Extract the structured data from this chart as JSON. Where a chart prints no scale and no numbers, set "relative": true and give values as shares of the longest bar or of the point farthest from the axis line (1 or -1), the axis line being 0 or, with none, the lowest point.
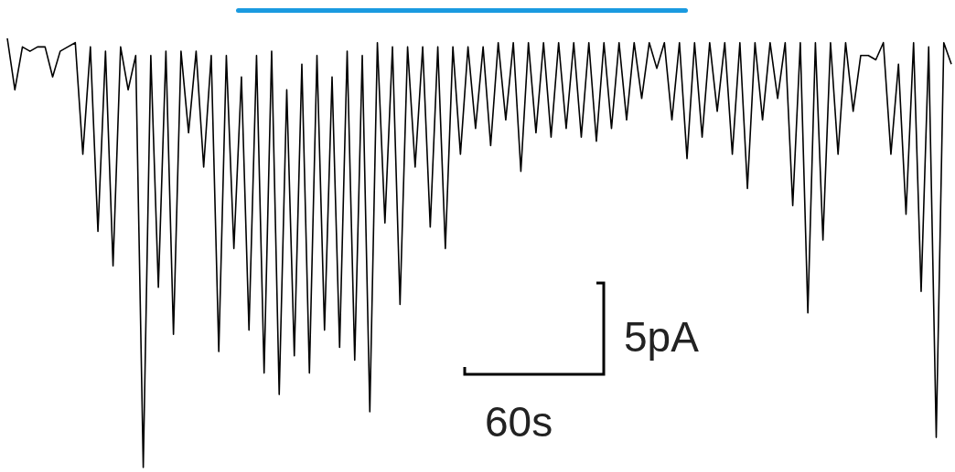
{
  "chart_data": {
    "type": "line",
    "relative": true,
    "line_style": "solid",
    "categories": [
      null,
      null,
      null,
      null,
      null,
      null,
      null,
      null,
      null,
      null,
      null,
      null,
      null,
      null,
      null,
      null,
      null,
      null,
      null,
      null,
      null,
      null,
      null,
      null,
      null,
      null,
      null,
      null,
      null,
      null,
      null,
      null,
      null,
      null,
      null,
      null,
      null,
      null,
      null,
      null,
      null,
      null,
      null,
      null,
      null,
      null,
      null,
      null,
      null,
      null,
      null,
      null,
      null,
      null,
      null,
      null,
      null,
      null,
      null,
      null,
      null,
      null,
      null,
      null,
      null,
      null,
      null,
      null,
      null,
      null,
      null,
      null,
      null,
      null,
      null,
      null,
      null,
      null,
      null,
      null,
      null,
      null,
      null,
      null,
      null,
      null,
      null,
      null,
      null,
      null,
      null,
      null,
      null,
      null,
      null,
      null,
      null,
      null,
      null,
      null,
      null,
      null,
      null,
      null,
      null,
      null,
      null,
      null,
      null,
      null,
      null,
      null,
      null,
      null,
      null,
      null,
      null,
      null,
      null,
      null,
      null,
      null,
      null,
      null,
      null,
      null
    ],
    "annotations": [
      "5pA",
      "60s"
    ],
    "series": [
      {
        "color": "#000000",
        "values": [
          1,
          0.88,
          0.98,
          0.97,
          0.98,
          0.98,
          0.91,
          0.97,
          0.98,
          0.99,
          0.73,
          0.98,
          0.55,
          0.97,
          0.47,
          0.98,
          0.88,
          0.96,
          0,
          0.96,
          0.42,
          0.97,
          0.31,
          0.97,
          0.78,
          0.97,
          0.7,
          0.96,
          0.27,
          0.96,
          0.51,
          0.91,
          0.32,
          0.96,
          0.22,
          0.97,
          0.17,
          0.88,
          0.26,
          0.94,
          0.22,
          0.96,
          0.32,
          0.91,
          0.28,
          0.97,
          0.25,
          0.96,
          0.13,
          0.99,
          0.57,
          0.98,
          0.38,
          0.98,
          0.7,
          0.98,
          0.56,
          0.98,
          0.51,
          0.98,
          0.73,
          0.98,
          0.79,
          0.98,
          0.75,
          0.99,
          0.81,
          0.99,
          0.69,
          0.99,
          0.78,
          0.99,
          0.77,
          0.99,
          0.79,
          0.99,
          0.77,
          0.99,
          0.76,
          0.99,
          0.79,
          0.99,
          0.81,
          0.99,
          0.86,
          0.99,
          0.93,
          0.99,
          0.81,
          0.99,
          0.72,
          0.99,
          0.77,
          0.99,
          0.83,
          0.99,
          0.73,
          0.99,
          0.65,
          0.99,
          0.81,
          0.99,
          0.86,
          0.99,
          0.61,
          0.99,
          0.36,
          0.99,
          0.53,
          0.99,
          0.73,
          0.99,
          0.83,
          0.96,
          0.96,
          0.95,
          0.99,
          0.73,
          0.94,
          0.59,
          0.99,
          0.41,
          0.98,
          0.07,
          0.99,
          0.94
        ]
      }
    ]
  }
}
